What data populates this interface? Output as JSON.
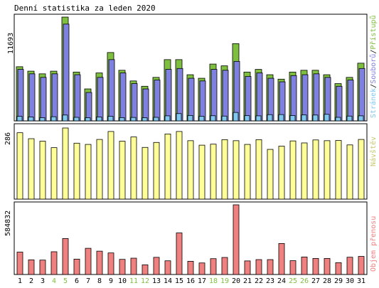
{
  "title": "Denní statistika za leden 2020",
  "colors": {
    "hits": "#7fbf3f",
    "files": "#8080e0",
    "pages": "#80c8f0",
    "visits": "#ffff99",
    "kbytes": "#f08080",
    "weekend": "#7fbf3f",
    "text": "#000000",
    "frame": "#000000"
  },
  "chart_data": [
    {
      "type": "bar",
      "title": "",
      "ylabel_max": "11693",
      "legend_order": "right-side, vertical",
      "legend": [
        "Přístupů",
        "Souborů",
        "Stránek"
      ],
      "series": [
        {
          "name": "Přístupů",
          "values": [
            6100,
            5600,
            5300,
            5600,
            11693,
            5500,
            3600,
            5400,
            7700,
            5700,
            4500,
            3900,
            4900,
            6900,
            6900,
            5200,
            4800,
            6400,
            6200,
            8700,
            5500,
            5800,
            5200,
            4700,
            5500,
            5700,
            5700,
            5200,
            4200,
            4900,
            6500
          ]
        },
        {
          "name": "Souborů",
          "values": [
            5800,
            5300,
            4900,
            5300,
            10900,
            5200,
            3200,
            4900,
            6900,
            5400,
            4200,
            3600,
            4600,
            5800,
            5900,
            4800,
            4500,
            5800,
            5700,
            6700,
            5000,
            5400,
            4800,
            4400,
            5100,
            5200,
            5300,
            4900,
            3900,
            4600,
            5900
          ]
        },
        {
          "name": "Stránek",
          "values": [
            510,
            440,
            360,
            470,
            660,
            400,
            350,
            440,
            520,
            370,
            390,
            350,
            400,
            570,
            820,
            610,
            520,
            580,
            540,
            950,
            590,
            570,
            700,
            710,
            600,
            670,
            660,
            740,
            400,
            540,
            570
          ]
        }
      ]
    },
    {
      "type": "bar",
      "title": "",
      "ylabel_max": "286",
      "legend": [
        "Návštěv"
      ],
      "series": [
        {
          "name": "Návštěv",
          "values": [
            267,
            243,
            233,
            207,
            286,
            225,
            220,
            240,
            272,
            233,
            250,
            208,
            228,
            262,
            272,
            235,
            217,
            221,
            239,
            235,
            220,
            239,
            200,
            213,
            234,
            226,
            238,
            235,
            236,
            218,
            240
          ]
        }
      ]
    },
    {
      "type": "bar",
      "title": "",
      "ylabel_max": "584832",
      "legend": [
        "Objem přenosu"
      ],
      "series": [
        {
          "name": "Objem přenosu",
          "values": [
            188000,
            123000,
            121000,
            191000,
            302000,
            129000,
            220000,
            196000,
            181000,
            127000,
            137000,
            81000,
            144000,
            115000,
            349000,
            111000,
            97000,
            133000,
            143000,
            584832,
            114000,
            125000,
            125000,
            260000,
            116000,
            147000,
            135000,
            135000,
            99000,
            145000,
            152000
          ]
        }
      ]
    }
  ],
  "x_labels": [
    "1",
    "2",
    "3",
    "4",
    "5",
    "6",
    "7",
    "8",
    "9",
    "10",
    "11",
    "12",
    "13",
    "14",
    "15",
    "16",
    "17",
    "18",
    "19",
    "20",
    "21",
    "22",
    "23",
    "24",
    "25",
    "26",
    "27",
    "28",
    "29",
    "30",
    "31"
  ],
  "weekend_days": [
    4,
    5,
    11,
    12,
    18,
    19,
    25,
    26
  ]
}
